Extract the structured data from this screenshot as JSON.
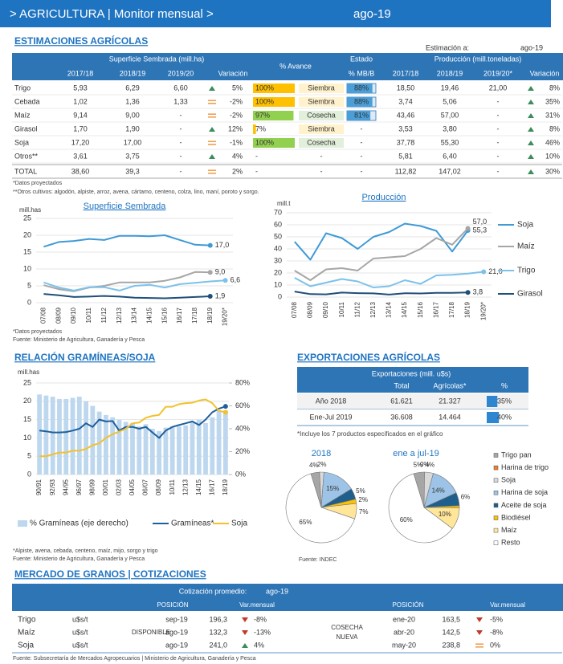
{
  "header": {
    "title": "> AGRICULTURA | Monitor mensual >",
    "date": "ago-19"
  },
  "estimaciones": {
    "title": "ESTIMACIONES AGRÍCOLAS",
    "estimacion_label": "Estimación a:",
    "estimacion_date": "ago-19",
    "group_headers": [
      "Superficie Sembrada (mill.ha)",
      "% Avance",
      "Estado",
      "Producción (mill.toneladas)"
    ],
    "sub_headers": [
      "2017/18",
      "2018/19",
      "2019/20",
      "Variación",
      "% MB/B",
      "2017/18",
      "2018/19",
      "2019/20*",
      "Variación"
    ],
    "estado_colors": {
      "Siembra": [
        "#ffc000",
        "#fff2cc"
      ],
      "Cosecha": [
        "#92d050",
        "#e2efda"
      ]
    },
    "rows": [
      {
        "name": "Trigo",
        "sup": [
          "5,93",
          "6,29",
          "6,60"
        ],
        "sup_var": "5%",
        "sup_trend": "up",
        "avance": "100%",
        "estado": "Siembra",
        "mbb": "88%",
        "prod": [
          "18,50",
          "19,46",
          "21,00"
        ],
        "prod_var": "8%",
        "prod_trend": "up"
      },
      {
        "name": "Cebada",
        "sup": [
          "1,02",
          "1,36",
          "1,33"
        ],
        "sup_var": "-2%",
        "sup_trend": "flat",
        "avance": "100%",
        "estado": "Siembra",
        "mbb": "88%",
        "prod": [
          "3,74",
          "5,06",
          "-"
        ],
        "prod_var": "35%",
        "prod_trend": "up"
      },
      {
        "name": "Maíz",
        "sup": [
          "9,14",
          "9,00",
          "-"
        ],
        "sup_var": "-2%",
        "sup_trend": "flat",
        "avance": "97%",
        "estado": "Cosecha",
        "mbb": "81%",
        "prod": [
          "43,46",
          "57,00",
          "-"
        ],
        "prod_var": "31%",
        "prod_trend": "up"
      },
      {
        "name": "Girasol",
        "sup": [
          "1,70",
          "1,90",
          "-"
        ],
        "sup_var": "12%",
        "sup_trend": "up",
        "avance": "7%",
        "estado": "Siembra",
        "mbb": "-",
        "prod": [
          "3,53",
          "3,80",
          "-"
        ],
        "prod_var": "8%",
        "prod_trend": "up"
      },
      {
        "name": "Soja",
        "sup": [
          "17,20",
          "17,00",
          "-"
        ],
        "sup_var": "-1%",
        "sup_trend": "flat",
        "avance": "100%",
        "estado": "Cosecha",
        "mbb": "-",
        "prod": [
          "37,78",
          "55,30",
          "-"
        ],
        "prod_var": "46%",
        "prod_trend": "up"
      },
      {
        "name": "Otros**",
        "sup": [
          "3,61",
          "3,75",
          "-"
        ],
        "sup_var": "4%",
        "sup_trend": "up",
        "avance": "-",
        "estado": "-",
        "mbb": "-",
        "prod": [
          "5,81",
          "6,40",
          "-"
        ],
        "prod_var": "10%",
        "prod_trend": "up"
      },
      {
        "name": "TOTAL",
        "sup": [
          "38,60",
          "39,3",
          "-"
        ],
        "sup_var": "2%",
        "sup_trend": "flat",
        "avance": "-",
        "estado": "-",
        "mbb": "-",
        "prod": [
          "112,82",
          "147,02",
          "-"
        ],
        "prod_var": "30%",
        "prod_trend": "up"
      }
    ],
    "notes": [
      "*Datos proyectados",
      "**Otros cultivos: algodón, alpiste, arroz, avena, cártamo, centeno, colza, lino, maní, poroto y sorgo."
    ]
  },
  "chart_data": [
    {
      "type": "line",
      "title": "Superficie Sembrada",
      "ylabel": "mill.has",
      "categories": [
        "07/08",
        "08/09",
        "09/10",
        "10/11",
        "11/12",
        "12/13",
        "13/14",
        "14/15",
        "15/16",
        "16/17",
        "17/18",
        "18/19",
        "19/20*"
      ],
      "ylim": [
        0,
        25
      ],
      "yticks": [
        0,
        5,
        10,
        15,
        20,
        25
      ],
      "grid": true,
      "series": [
        {
          "color": "#3f9ad6",
          "values": [
            16.6,
            18,
            18.3,
            18.9,
            18.6,
            19.8,
            19.8,
            19.7,
            20,
            18.6,
            17.2,
            17.0,
            null
          ],
          "value_labels": [
            null,
            null,
            null,
            null,
            null,
            null,
            null,
            null,
            null,
            null,
            null,
            "17,0",
            null
          ]
        },
        {
          "color": "#a6a6a6",
          "values": [
            5.2,
            4,
            3.4,
            4.5,
            5,
            6,
            6,
            6,
            6.5,
            7.5,
            9.1,
            9.0,
            null
          ],
          "value_labels": [
            null,
            null,
            null,
            null,
            null,
            null,
            null,
            null,
            null,
            null,
            null,
            "9,0",
            null
          ]
        },
        {
          "color": "#7cc1ea",
          "values": [
            6,
            4.5,
            3.6,
            4.6,
            4.6,
            3.6,
            5,
            5.3,
            4.5,
            5.5,
            5.9,
            6.3,
            6.6
          ],
          "value_labels": [
            null,
            null,
            null,
            null,
            null,
            null,
            null,
            null,
            null,
            null,
            null,
            null,
            "6,6"
          ]
        },
        {
          "color": "#1f4e79",
          "values": [
            2.6,
            2.2,
            1.7,
            1.8,
            2,
            1.8,
            1.5,
            1.4,
            1.3,
            1.5,
            1.7,
            1.9,
            null
          ],
          "value_labels": [
            null,
            null,
            null,
            null,
            null,
            null,
            null,
            null,
            null,
            null,
            null,
            "1,9",
            null
          ]
        }
      ],
      "notes": [
        "*Datos proyectados",
        "Fuente: Ministerio de Agricultura, Ganadería y Pesca"
      ]
    },
    {
      "type": "line",
      "title": "Producción",
      "ylabel": "mill.t",
      "categories": [
        "07/08",
        "08/09",
        "09/10",
        "10/11",
        "11/12",
        "12/13",
        "13/14",
        "14/15",
        "15/16",
        "16/17",
        "17/18",
        "18/19",
        "19/20*"
      ],
      "ylim": [
        0,
        70
      ],
      "yticks": [
        0,
        10,
        20,
        30,
        40,
        50,
        60,
        70
      ],
      "grid": true,
      "series": [
        {
          "name": "Soja",
          "color": "#3f9ad6",
          "values": [
            46,
            31,
            53,
            49,
            40,
            50,
            54,
            61,
            59,
            55,
            37.8,
            55.3,
            null
          ],
          "value_labels": [
            null,
            null,
            null,
            null,
            null,
            null,
            null,
            null,
            null,
            null,
            null,
            "55,3",
            null
          ]
        },
        {
          "name": "Maíz",
          "color": "#a6a6a6",
          "values": [
            22,
            14,
            23,
            24,
            22,
            32,
            33,
            34,
            40,
            49,
            43.5,
            57.0,
            null
          ],
          "value_labels": [
            null,
            null,
            null,
            null,
            null,
            null,
            null,
            null,
            null,
            null,
            null,
            "57,0",
            null
          ]
        },
        {
          "name": "Trigo",
          "color": "#7cc1ea",
          "values": [
            16,
            9,
            12,
            15,
            13,
            8,
            9,
            14,
            11,
            18,
            18.5,
            19.5,
            21.0
          ],
          "value_labels": [
            null,
            null,
            null,
            null,
            null,
            null,
            null,
            null,
            null,
            null,
            null,
            null,
            "21,0"
          ]
        },
        {
          "name": "Girasol",
          "color": "#1f4e79",
          "values": [
            4.6,
            2.5,
            2.3,
            3.7,
            3.3,
            3.1,
            2.1,
            3.2,
            3,
            3.5,
            3.5,
            3.8,
            null
          ],
          "value_labels": [
            null,
            null,
            null,
            null,
            null,
            null,
            null,
            null,
            null,
            null,
            null,
            "3,8",
            null
          ]
        }
      ]
    },
    {
      "type": "line",
      "title": "RELACIÓN GRAMÍNEAS/SOJA",
      "ylabel": "mill.has",
      "categories": [
        "90/91",
        null,
        "92/93",
        null,
        "94/95",
        null,
        "96/97",
        null,
        "98/99",
        null,
        "00/01",
        null,
        "02/03",
        null,
        "04/05",
        null,
        "06/07",
        null,
        "08/09",
        null,
        "10/11",
        null,
        "12/13",
        null,
        "14/15",
        null,
        "16/17",
        null,
        "18/19"
      ],
      "ylim": [
        0,
        25
      ],
      "yticks": [
        0,
        5,
        10,
        15,
        20,
        25
      ],
      "grid": true,
      "y2lim": [
        0,
        80
      ],
      "y2ticks": [
        {
          "value": 0,
          "label": "0%"
        },
        {
          "value": 20,
          "label": "20%"
        },
        {
          "value": 40,
          "label": "40%"
        },
        {
          "value": 60,
          "label": "60%"
        },
        {
          "value": 80,
          "label": "80%"
        }
      ],
      "series": [
        {
          "name": "% Gramíneas (eje derecho)",
          "type": "bar",
          "axis": "y2",
          "color": "#bdd7ee",
          "values": [
            70,
            69,
            68,
            66,
            66,
            67,
            68,
            64,
            60,
            55,
            52,
            50,
            48,
            46,
            45,
            42,
            44,
            40,
            38,
            41,
            42,
            42,
            43,
            46,
            48,
            45,
            50,
            56,
            56
          ]
        },
        {
          "name": "Gramíneas*",
          "color": "#1f5f9b",
          "values": [
            12,
            11.8,
            11.5,
            11.5,
            11.6,
            12,
            12.5,
            14,
            13,
            15,
            14.5,
            14.6,
            12,
            13,
            13,
            12.5,
            13,
            11.5,
            10,
            12,
            13,
            13.5,
            14,
            14.5,
            13.5,
            15,
            17,
            18,
            18.6
          ]
        },
        {
          "name": "Soja",
          "color": "#f2c12e",
          "values": [
            5,
            5,
            5.5,
            6,
            6,
            6.5,
            6.5,
            7,
            8,
            8.5,
            10,
            11,
            11.7,
            12.5,
            14,
            14.2,
            15.5,
            16,
            16.3,
            18.5,
            18.5,
            19.2,
            19.5,
            19.6,
            20.2,
            20.5,
            19.5,
            17.4,
            17.0
          ]
        }
      ],
      "notes": [
        "*Alpiste, avena, cebada, centeno, maíz, mijo, sorgo y trigo",
        "Fuente: Ministerio de Agricultura, Ganadería y Pesca"
      ]
    },
    {
      "type": "pie",
      "labels": [
        "Trigo pan",
        "Harina de trigo",
        "Soja",
        "Harina de soja",
        "Aceite de soja",
        "Biodiésel",
        "Maíz",
        "Resto"
      ],
      "colors": [
        "#a6a6a6",
        "#ed7d31",
        "#d9d9d9",
        "#9dc3e6",
        "#1f5f8b",
        "#ffc000",
        "#ffe699",
        "#ffffff"
      ],
      "series": [
        {
          "name": "2018",
          "values": [
            4,
            0,
            2,
            15,
            5,
            2,
            7,
            65
          ],
          "value_labels": [
            "4%",
            null,
            "2%",
            "15%",
            "5%",
            "2%",
            "7%",
            "65%"
          ]
        },
        {
          "name": "ene a jul-19",
          "values": [
            5,
            0,
            4,
            14,
            6,
            1,
            10,
            60
          ],
          "value_labels": [
            "5%",
            "0%",
            "4%",
            "14%",
            "6%",
            null,
            "10%",
            "60%"
          ]
        }
      ]
    }
  ],
  "exportaciones": {
    "title": "EXPORTACIONES AGRÍCOLAS",
    "header": "Exportaciones (mill. u$s)",
    "columns": [
      "Total",
      "Agrícolas*",
      "%"
    ],
    "rows": [
      [
        "Año 2018",
        "61.621",
        "21.327",
        "35%"
      ],
      [
        "Ene-Jul 2019",
        "36.608",
        "14.464",
        "40%"
      ]
    ],
    "note": "*Incluye los 7 productos especificados en el gráfico",
    "source": "Fuente: INDEC"
  },
  "mercado": {
    "title": "MERCADO DE GRANOS | COTIZACIONES",
    "cotizacion_label": "Cotización promedio:",
    "cotizacion_date": "ago-19",
    "headers": [
      "POSICIÓN",
      "Var.mensual",
      "POSICIÓN",
      "Var.mensual"
    ],
    "disponible": "DISPONIBLE",
    "cosecha_nueva": [
      "COSECHA",
      "NUEVA"
    ],
    "rows": [
      {
        "name": "Trigo",
        "unit": "u$s/t",
        "pos": "sep-19",
        "price": "196,3",
        "var": "-8%",
        "trend": "down",
        "pos2": "ene-20",
        "price2": "163,5",
        "var2": "-5%",
        "trend2": "down"
      },
      {
        "name": "Maíz",
        "unit": "u$s/t",
        "pos": "ago-19",
        "price": "132,3",
        "var": "-13%",
        "trend": "down",
        "pos2": "abr-20",
        "price2": "142,5",
        "var2": "-8%",
        "trend2": "down"
      },
      {
        "name": "Soja",
        "unit": "u$s/t",
        "pos": "ago-19",
        "price": "241,0",
        "var": "4%",
        "trend": "up",
        "pos2": "may-20",
        "price2": "238,8",
        "var2": "0%",
        "trend2": "flat"
      }
    ],
    "source": "Fuente: Subsecretaría de Mercados Agropecuarios | Ministerio de Agricultura, Ganadería y Pesca"
  }
}
